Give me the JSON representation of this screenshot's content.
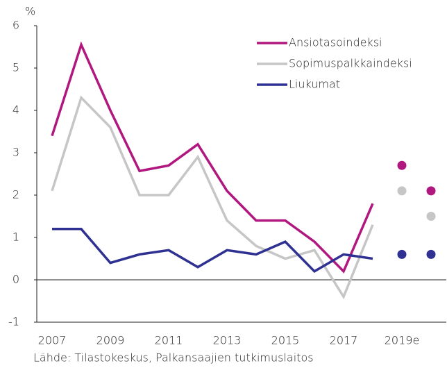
{
  "chart_data": {
    "type": "line",
    "y_label": "%",
    "source": "Lähde: Tilastokeskus, Palkansaajien tutkimuslaitos",
    "categories": [
      "2007",
      null,
      "2009",
      null,
      "2011",
      null,
      "2013",
      null,
      "2015",
      null,
      "2017",
      null,
      "2019e",
      null
    ],
    "series": [
      {
        "name": "Ansiotasoindeksi",
        "color": "#b0177f",
        "values": [
          3.4,
          5.55,
          4.0,
          2.57,
          2.7,
          3.2,
          2.1,
          1.4,
          1.4,
          0.9,
          0.2,
          1.8,
          null,
          null
        ],
        "forecast": [
          null,
          null,
          null,
          null,
          null,
          null,
          null,
          null,
          null,
          null,
          null,
          null,
          2.7,
          2.1
        ]
      },
      {
        "name": "Sopimuspalkkaindeksi",
        "color": "#c6c6c6",
        "values": [
          2.1,
          4.3,
          3.6,
          2.0,
          2.0,
          2.9,
          1.4,
          0.8,
          0.5,
          0.7,
          -0.4,
          1.3,
          null,
          null
        ],
        "forecast": [
          null,
          null,
          null,
          null,
          null,
          null,
          null,
          null,
          null,
          null,
          null,
          null,
          2.1,
          1.5
        ]
      },
      {
        "name": "Liukumat",
        "color": "#2e3192",
        "values": [
          1.2,
          1.2,
          0.4,
          0.6,
          0.7,
          0.3,
          0.7,
          0.6,
          0.9,
          0.2,
          0.6,
          0.5,
          null,
          null
        ],
        "forecast": [
          null,
          null,
          null,
          null,
          null,
          null,
          null,
          null,
          null,
          null,
          null,
          null,
          0.6,
          0.6
        ]
      }
    ],
    "ylim": [
      -1,
      6
    ],
    "yticks": [
      -1,
      0,
      1,
      2,
      3,
      4,
      5,
      6
    ],
    "legend": "upper right"
  }
}
